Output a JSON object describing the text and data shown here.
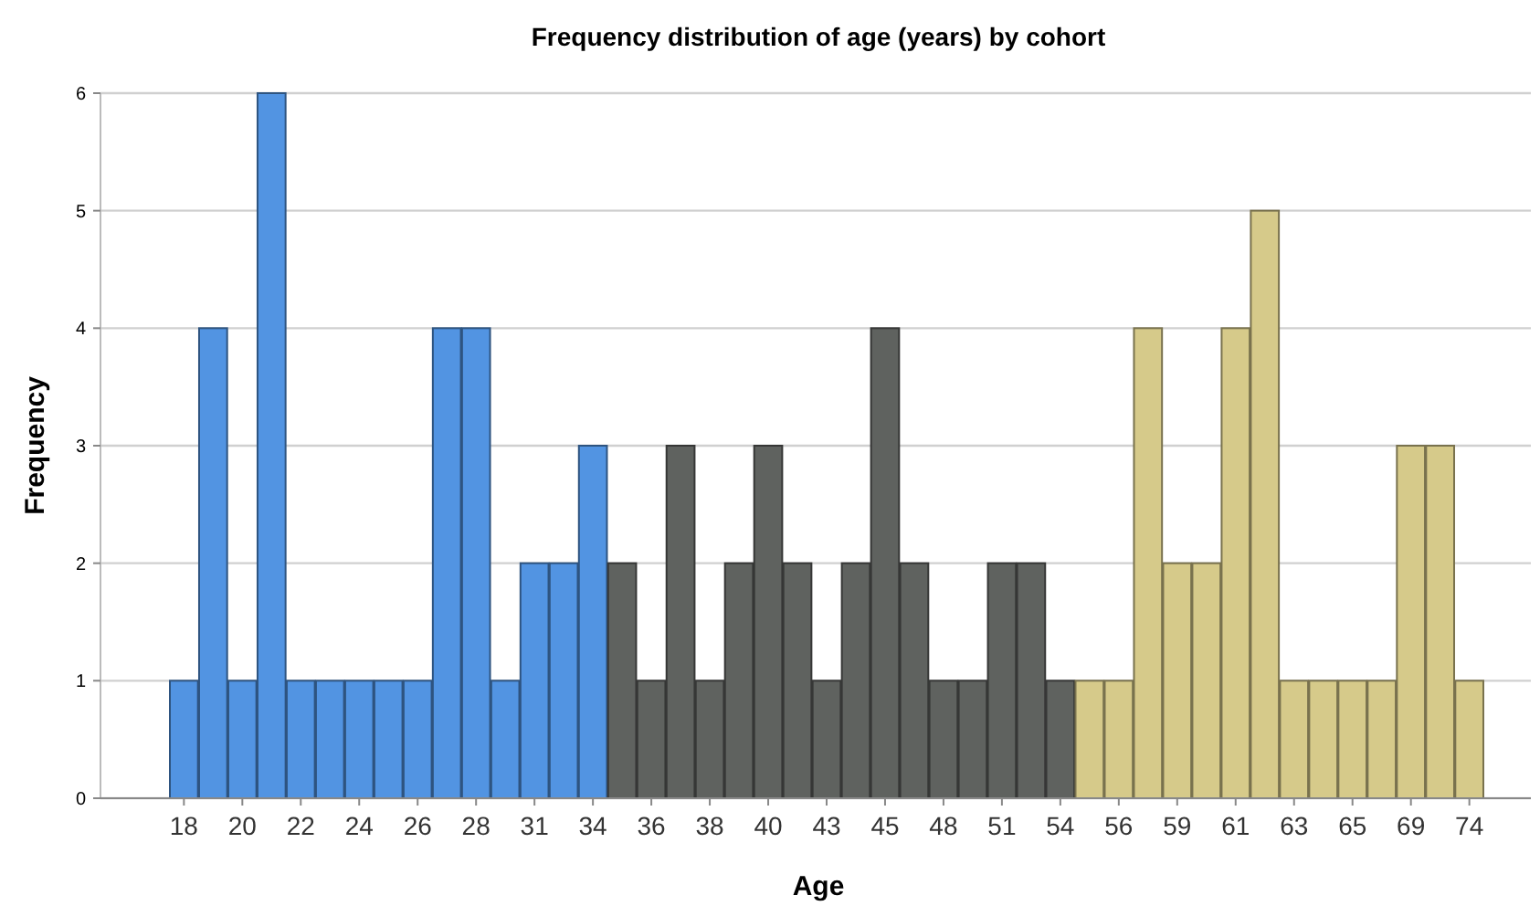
{
  "chart_data": {
    "type": "bar",
    "title": "Frequency distribution of age (years) by cohort",
    "xlabel": "Age",
    "ylabel": "Frequency",
    "categories": [
      "18",
      null,
      "20",
      null,
      "22",
      null,
      "24",
      null,
      "26",
      null,
      "28",
      null,
      "31",
      null,
      "34",
      null,
      "36",
      null,
      "38",
      null,
      "40",
      null,
      "43",
      null,
      "45",
      null,
      "48",
      null,
      "51",
      null,
      "54",
      null,
      "56",
      null,
      "59",
      null,
      "61",
      null,
      "63",
      null,
      "65",
      null,
      "69",
      null,
      "74"
    ],
    "values": [
      1,
      4,
      1,
      6,
      1,
      1,
      1,
      1,
      1,
      4,
      4,
      1,
      2,
      2,
      3,
      2,
      1,
      3,
      1,
      2,
      3,
      2,
      1,
      2,
      4,
      2,
      1,
      1,
      2,
      2,
      1,
      1,
      1,
      4,
      2,
      2,
      4,
      5,
      1,
      1,
      1,
      1,
      3,
      3,
      1
    ],
    "colors": [
      "#5294e2",
      "#5294e2",
      "#5294e2",
      "#5294e2",
      "#5294e2",
      "#5294e2",
      "#5294e2",
      "#5294e2",
      "#5294e2",
      "#5294e2",
      "#5294e2",
      "#5294e2",
      "#5294e2",
      "#5294e2",
      "#5294e2",
      "#5f625f",
      "#5f625f",
      "#5f625f",
      "#5f625f",
      "#5f625f",
      "#5f625f",
      "#5f625f",
      "#5f625f",
      "#5f625f",
      "#5f625f",
      "#5f625f",
      "#5f625f",
      "#5f625f",
      "#5f625f",
      "#5f625f",
      "#5f625f",
      "#d6ca8a",
      "#d6ca8a",
      "#d6ca8a",
      "#d6ca8a",
      "#d6ca8a",
      "#d6ca8a",
      "#d6ca8a",
      "#d6ca8a",
      "#d6ca8a",
      "#d6ca8a",
      "#d6ca8a",
      "#d6ca8a",
      "#d6ca8a",
      "#d6ca8a"
    ],
    "ylim": [
      0,
      6
    ],
    "yticks": [
      0,
      1,
      2,
      3,
      4,
      5,
      6
    ],
    "grid": "y"
  }
}
